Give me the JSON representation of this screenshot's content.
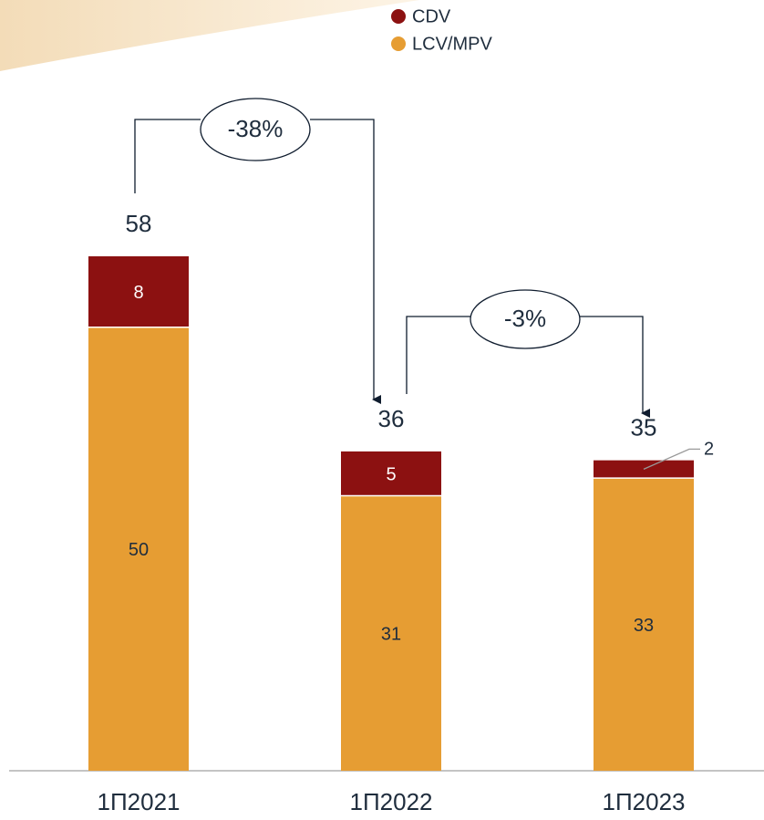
{
  "chart_data": {
    "type": "stacked_bar",
    "categories": [
      "1П2021",
      "1П2022",
      "1П2023"
    ],
    "series": [
      {
        "name": "LCV/MPV",
        "color": "#e69d33",
        "values": [
          50,
          31,
          33
        ]
      },
      {
        "name": "CDV",
        "color": "#8c1111",
        "values": [
          8,
          5,
          2
        ]
      }
    ],
    "totals": [
      58,
      36,
      35
    ],
    "annotations": [
      "-38%",
      "-3%"
    ]
  }
}
